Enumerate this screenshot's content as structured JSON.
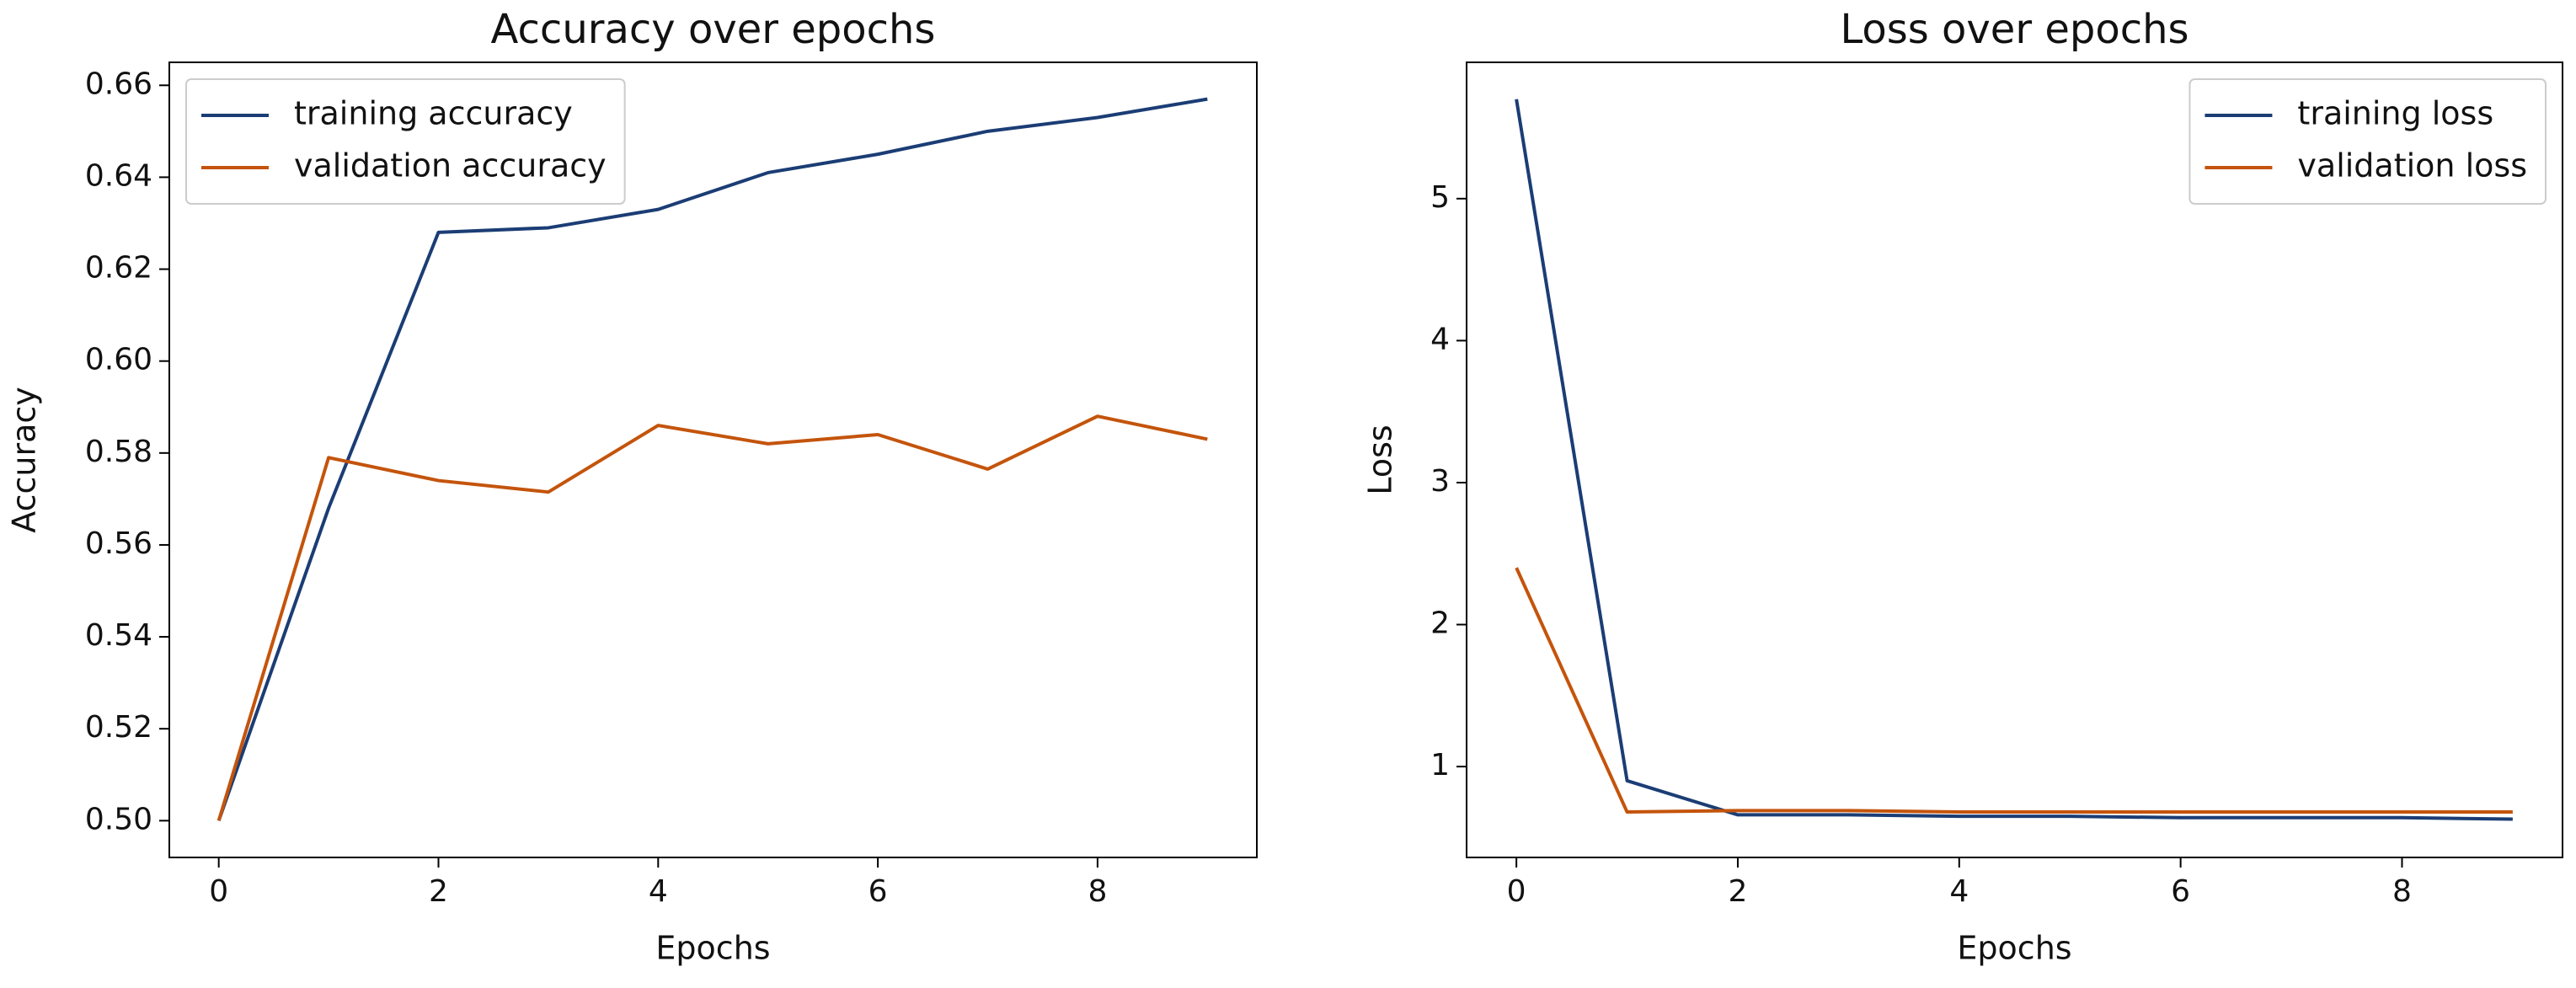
{
  "chart_data": [
    {
      "type": "line",
      "title": "Accuracy over epochs",
      "x_label": "Epochs",
      "y_label": "Accuracy",
      "x": [
        0,
        1,
        2,
        3,
        4,
        5,
        6,
        7,
        8,
        9
      ],
      "series": [
        {
          "name": "training accuracy",
          "color": "#1b3d75",
          "values": [
            0.5,
            0.568,
            0.628,
            0.629,
            0.633,
            0.641,
            0.645,
            0.65,
            0.653,
            0.657
          ]
        },
        {
          "name": "validation accuracy",
          "color": "#c4540c",
          "values": [
            0.5,
            0.579,
            0.574,
            0.5715,
            0.586,
            0.582,
            0.584,
            0.5765,
            0.588,
            0.583
          ]
        }
      ],
      "xlim": [
        -0.45,
        9.45
      ],
      "xticks": [
        0,
        2,
        4,
        6,
        8
      ],
      "ylim": [
        0.492,
        0.665
      ],
      "yticks": [
        {
          "value": 0.5,
          "label": "0.50"
        },
        0.52,
        0.54,
        0.56,
        0.58,
        {
          "value": 0.6,
          "label": "0.60"
        },
        0.62,
        0.64,
        {
          "value": 0.66,
          "label": "0.66"
        }
      ],
      "legend": "upper left",
      "grid": false
    },
    {
      "type": "line",
      "title": "Loss over epochs",
      "x_label": "Epochs",
      "y_label": "Loss",
      "x": [
        0,
        1,
        2,
        3,
        4,
        5,
        6,
        7,
        8,
        9
      ],
      "series": [
        {
          "name": "training loss",
          "color": "#1b3d75",
          "values": [
            5.7,
            0.9,
            0.66,
            0.66,
            0.65,
            0.65,
            0.64,
            0.64,
            0.64,
            0.63
          ]
        },
        {
          "name": "validation loss",
          "color": "#c4540c",
          "values": [
            2.4,
            0.68,
            0.69,
            0.69,
            0.68,
            0.68,
            0.68,
            0.68,
            0.68,
            0.68
          ]
        }
      ],
      "xlim": [
        -0.45,
        9.45
      ],
      "xticks": [
        0,
        2,
        4,
        6,
        8
      ],
      "ylim": [
        0.36,
        5.96
      ],
      "yticks": [
        1,
        2,
        3,
        4,
        5
      ],
      "legend": "upper right",
      "grid": false
    }
  ]
}
